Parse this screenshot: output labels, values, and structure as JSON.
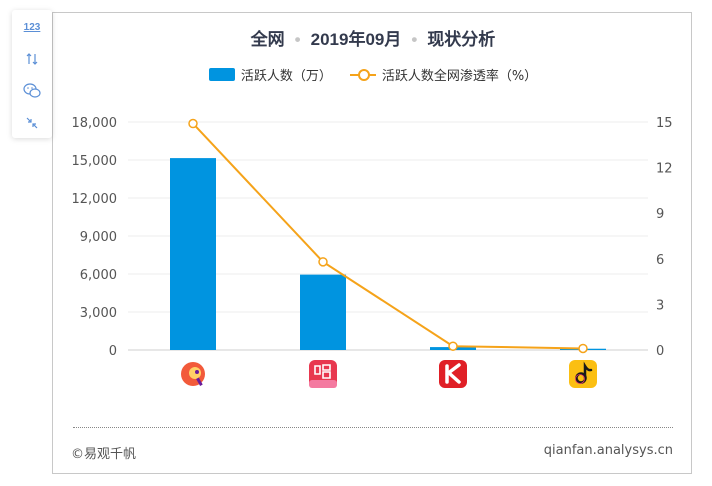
{
  "toolbar": {
    "items": [
      {
        "name": "numbers",
        "label": "123"
      },
      {
        "name": "sort",
        "icon": "sort-icon"
      },
      {
        "name": "wechat",
        "icon": "wechat-icon"
      },
      {
        "name": "shrink",
        "icon": "shrink-icon"
      }
    ]
  },
  "header": {
    "title_parts": [
      "全网",
      "2019年09月",
      "现状分析"
    ],
    "separator": "•"
  },
  "legend": {
    "bar_label": "活跃人数（万）",
    "line_label": "活跃人数全网渗透率（%）"
  },
  "footer": {
    "left": "©易观千帆",
    "right": "qianfan.analysys.cn"
  },
  "colors": {
    "bar": "#0094e0",
    "line": "#f5a31a",
    "grid": "#ececec"
  },
  "chart_data": {
    "type": "bar",
    "categories": [
      "app-1",
      "app-2",
      "app-3",
      "app-4"
    ],
    "category_icons": [
      "mic-bird-icon",
      "chang-icon",
      "k-song-icon",
      "douyin-icon"
    ],
    "series": [
      {
        "name": "活跃人数（万）",
        "type": "bar",
        "axis": "left",
        "values": [
          15150,
          5950,
          230,
          100
        ]
      },
      {
        "name": "活跃人数全网渗透率（%）",
        "type": "line",
        "axis": "right",
        "values": [
          14.9,
          5.8,
          0.25,
          0.1
        ]
      }
    ],
    "y_left": {
      "min": 0,
      "max": 18000,
      "ticks": [
        0,
        3000,
        6000,
        9000,
        12000,
        15000,
        18000
      ],
      "tick_labels": [
        "0",
        "3,000",
        "6,000",
        "9,000",
        "12,000",
        "15,000",
        "18,000"
      ]
    },
    "y_right": {
      "min": 0,
      "max": 15,
      "ticks": [
        0,
        3,
        6,
        9,
        12,
        15
      ],
      "tick_labels": [
        "0",
        "3",
        "6",
        "9",
        "12",
        "15"
      ]
    },
    "grid": true,
    "legend_position": "top-center"
  }
}
